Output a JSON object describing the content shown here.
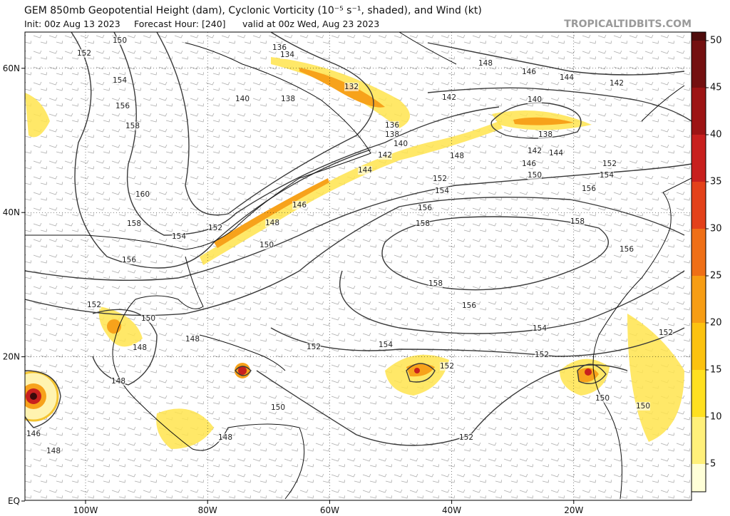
{
  "header": {
    "title": "GEM 850mb Geopotential Height (dam), Cyclonic Vorticity (10⁻⁵ s⁻¹, shaded), and Wind (kt)",
    "init": "Init: 00z Aug 13 2023",
    "forecast_hour": "Forecast Hour: [240]",
    "valid": "valid at 00z Wed, Aug 23 2023",
    "site": "TROPICALTIDBITS.COM"
  },
  "map": {
    "lat_ticks": [
      {
        "value": 60,
        "label": "60N"
      },
      {
        "value": 40,
        "label": "40N"
      },
      {
        "value": 20,
        "label": "20N"
      },
      {
        "value": 0,
        "label": "EQ"
      }
    ],
    "lon_ticks": [
      {
        "value": -100,
        "label": "100W"
      },
      {
        "value": -80,
        "label": "80W"
      },
      {
        "value": -60,
        "label": "60W"
      },
      {
        "value": -40,
        "label": "40W"
      },
      {
        "value": -20,
        "label": "20W"
      }
    ],
    "contour_labels": [
      152,
      150,
      154,
      156,
      158,
      160,
      158,
      154,
      152,
      156,
      136,
      134,
      132,
      140,
      138,
      136,
      138,
      140,
      142,
      144,
      146,
      148,
      150,
      148,
      146,
      144,
      142,
      142,
      140,
      138,
      142,
      144,
      146,
      148,
      150,
      152,
      154,
      152,
      154,
      156,
      156,
      158,
      158,
      156,
      158,
      156,
      154,
      154,
      152,
      152,
      152,
      152,
      150,
      152,
      148,
      148,
      148,
      150,
      150,
      150,
      152,
      148,
      146,
      148
    ]
  },
  "colorbar": {
    "ticks": [
      5,
      10,
      15,
      20,
      25,
      30,
      35,
      40,
      45,
      50
    ]
  }
}
